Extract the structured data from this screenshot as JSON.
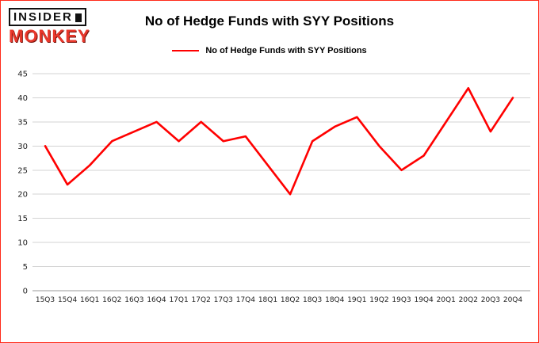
{
  "logo": {
    "line1": "INSIDER",
    "line2": "MONKEY"
  },
  "header": {
    "title": "No of Hedge Funds with SYY Positions"
  },
  "legend": {
    "label": "No of Hedge Funds with SYY Positions",
    "color": "#ff0000"
  },
  "chart_data": {
    "type": "line",
    "title": "No of Hedge Funds with SYY Positions",
    "categories": [
      "15Q3",
      "15Q4",
      "16Q1",
      "16Q2",
      "16Q3",
      "16Q4",
      "17Q1",
      "17Q2",
      "17Q3",
      "17Q4",
      "18Q1",
      "18Q2",
      "18Q3",
      "18Q4",
      "19Q1",
      "19Q2",
      "19Q3",
      "19Q4",
      "20Q1",
      "20Q2",
      "20Q3",
      "20Q4"
    ],
    "values": [
      30,
      22,
      26,
      31,
      33,
      35,
      31,
      35,
      31,
      32,
      26,
      20,
      31,
      34,
      36,
      30,
      25,
      28,
      35,
      42,
      33,
      40
    ],
    "xlabel": "",
    "ylabel": "",
    "ylim": [
      0,
      45
    ],
    "ytick_step": 5,
    "grid": true,
    "legend_position": "top",
    "line_color": "#ff0000",
    "grid_color": "#d3d3d3",
    "axis_color": "#9a9a9a",
    "tick_label_color": "#222222"
  }
}
